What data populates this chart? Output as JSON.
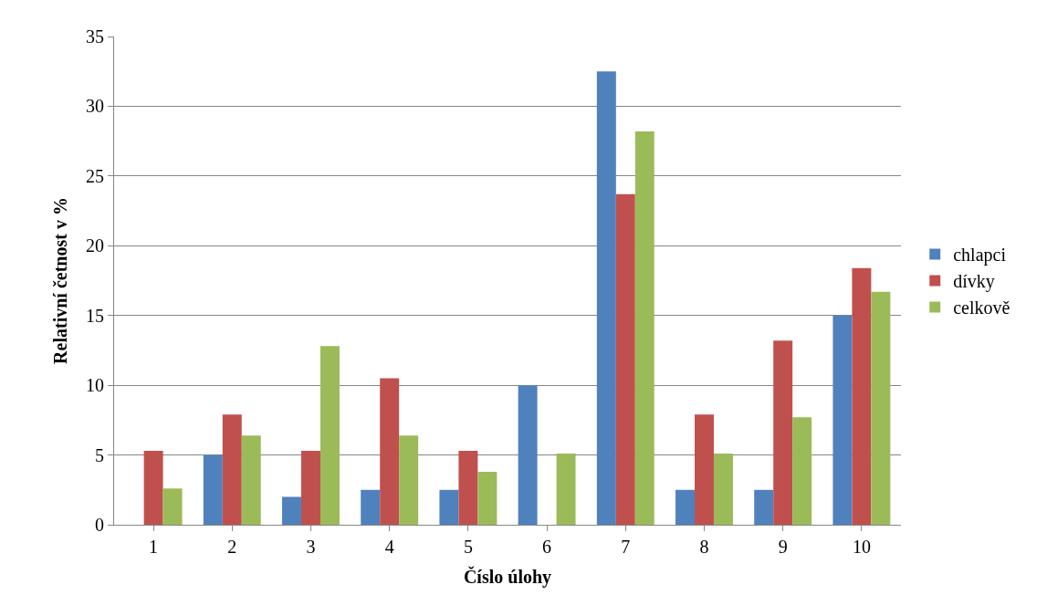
{
  "chart_data": {
    "type": "bar",
    "xlabel": "Číslo úlohy",
    "ylabel": "Relativní četnost v %",
    "categories": [
      "1",
      "2",
      "3",
      "4",
      "5",
      "6",
      "7",
      "8",
      "9",
      "10"
    ],
    "series": [
      {
        "name": "chlapci",
        "color": "#4f81bd",
        "values": [
          0,
          5,
          2,
          2.5,
          2.5,
          10,
          32.5,
          2.5,
          2.5,
          15
        ]
      },
      {
        "name": "dívky",
        "color": "#c0504d",
        "values": [
          5.3,
          7.9,
          5.3,
          10.5,
          5.3,
          0,
          23.7,
          7.9,
          13.2,
          18.4
        ]
      },
      {
        "name": "celkově",
        "color": "#9bbb59",
        "values": [
          2.6,
          6.4,
          12.8,
          6.4,
          3.8,
          5.1,
          28.2,
          5.1,
          7.7,
          16.7
        ]
      }
    ],
    "ylim": [
      0,
      35
    ],
    "yticks": [
      0,
      5,
      10,
      15,
      20,
      25,
      30,
      35
    ],
    "grid": "y",
    "legend": "right"
  }
}
